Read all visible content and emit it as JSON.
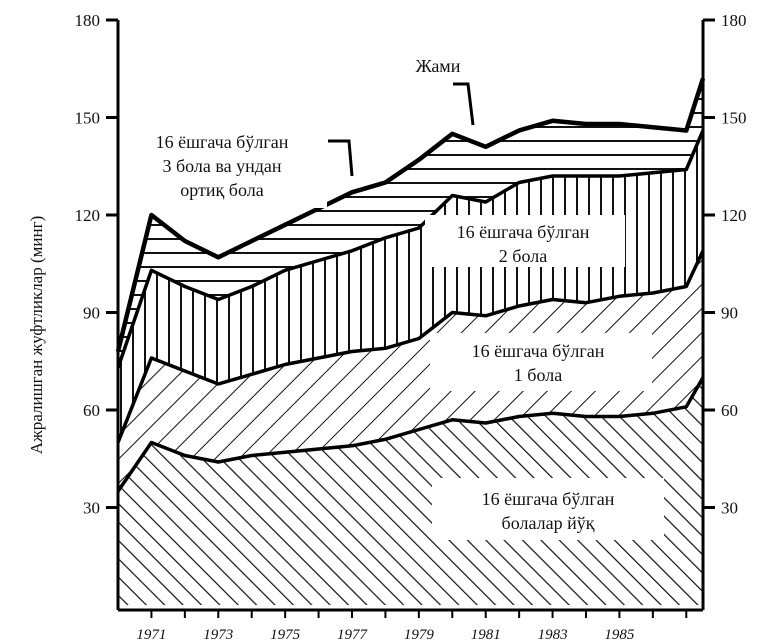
{
  "chart_data": {
    "type": "area",
    "stacked": true,
    "title": "",
    "xlabel": "",
    "ylabel": "Ажралишган жуфтликлар (минг)",
    "ylim": [
      0,
      180
    ],
    "yticks": [
      30,
      60,
      90,
      120,
      150,
      180
    ],
    "xlim": [
      1970,
      1987.5
    ],
    "xtick_labels": [
      "1971",
      "1973",
      "1975",
      "1977",
      "1979",
      "1981",
      "1983",
      "1985"
    ],
    "secondary_y_axis": true,
    "grid": false,
    "legend": "none",
    "x": [
      1970,
      1971,
      1972,
      1973,
      1974,
      1975,
      1976,
      1977,
      1978,
      1979,
      1980,
      1981,
      1982,
      1983,
      1984,
      1985,
      1986,
      1987,
      1987.5
    ],
    "series": [
      {
        "label": "16 ёшгача бўлган болалар йўқ",
        "cumulative": [
          35,
          50,
          46,
          44,
          46,
          47,
          48,
          49,
          51,
          54,
          57,
          56,
          58,
          59,
          58,
          58,
          59,
          61,
          70
        ]
      },
      {
        "label": "16 ёшгача бўлган 1 бола",
        "cumulative": [
          50,
          76,
          72,
          68,
          71,
          74,
          76,
          78,
          79,
          82,
          90,
          89,
          92,
          94,
          93,
          95,
          96,
          98,
          109
        ]
      },
      {
        "label": "16 ёшгача бўлган 2 бола",
        "cumulative": [
          73,
          103,
          98,
          94,
          98,
          103,
          106,
          109,
          113,
          116,
          126,
          124,
          130,
          132,
          132,
          132,
          133,
          134,
          146
        ]
      },
      {
        "label": "16 ёшгача бўлган 3 бола ва ундан ортиқ бола",
        "cumulative": [
          78,
          120,
          112,
          107,
          112,
          117,
          122,
          127,
          130,
          137,
          145,
          141,
          146,
          149,
          148,
          148,
          147,
          146,
          162
        ]
      }
    ],
    "total_label": "Жами",
    "annotations": [
      {
        "series_index": 0,
        "lines": [
          "16 ёшгача бўлган",
          "болалар йўқ"
        ]
      },
      {
        "series_index": 1,
        "lines": [
          "16 ёшгача бўлган",
          "1 бола"
        ]
      },
      {
        "series_index": 2,
        "lines": [
          "16 ёшгача бўлган",
          "2 бола"
        ]
      },
      {
        "series_index": 3,
        "lines": [
          "16 ёшгача бўлган",
          "3 бола ва ундан",
          "ортиқ бола"
        ]
      }
    ]
  }
}
